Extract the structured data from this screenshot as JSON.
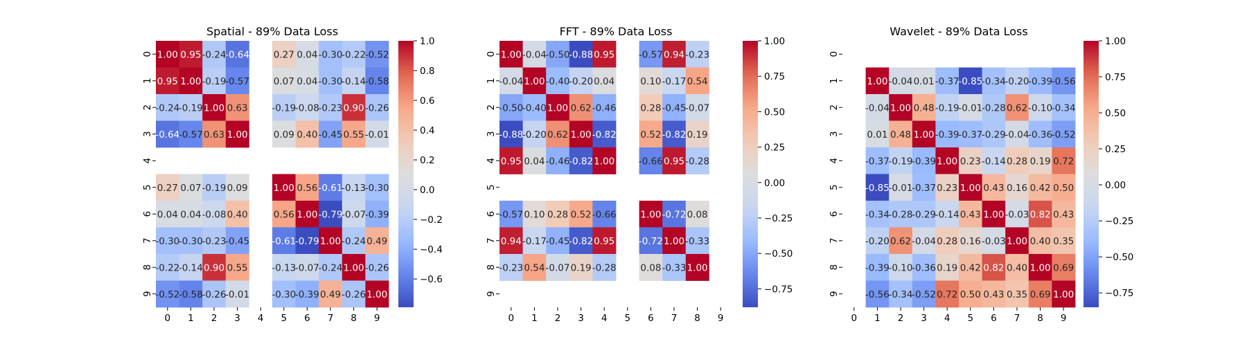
{
  "colormap": {
    "name": "coolwarm",
    "stops": [
      "#3b4cc0",
      "#6788ee",
      "#9abbff",
      "#c9d7f0",
      "#dddddd",
      "#f2cbb7",
      "#f7a889",
      "#e26952",
      "#b40426"
    ]
  },
  "chart_data": [
    {
      "type": "heatmap",
      "title": "Spatial - 89% Data Loss",
      "xlabel": "",
      "ylabel": "",
      "x_ticks": [
        "0",
        "1",
        "2",
        "3",
        "4",
        "5",
        "6",
        "7",
        "8",
        "9"
      ],
      "y_ticks": [
        "0",
        "1",
        "2",
        "3",
        "4",
        "5",
        "6",
        "7",
        "8",
        "9"
      ],
      "vmin": -0.79,
      "vmax": 1.0,
      "colorbar_ticks": [
        -0.6,
        -0.4,
        -0.2,
        0.0,
        0.2,
        0.4,
        0.6,
        0.8,
        1.0
      ],
      "colorbar_labels": [
        "−0.6",
        "−0.4",
        "−0.2",
        "0.0",
        "0.2",
        "0.4",
        "0.6",
        "0.8",
        "1.0"
      ],
      "matrix": [
        [
          1.0,
          0.95,
          -0.24,
          -0.64,
          null,
          0.27,
          0.04,
          -0.3,
          -0.22,
          -0.52
        ],
        [
          0.95,
          1.0,
          -0.19,
          -0.57,
          null,
          0.07,
          0.04,
          -0.3,
          -0.14,
          -0.58
        ],
        [
          -0.24,
          -0.19,
          1.0,
          0.63,
          null,
          -0.19,
          -0.08,
          -0.23,
          0.9,
          -0.26
        ],
        [
          -0.64,
          -0.57,
          0.63,
          1.0,
          null,
          0.09,
          0.4,
          -0.45,
          0.55,
          -0.01
        ],
        [
          null,
          null,
          null,
          null,
          null,
          null,
          null,
          null,
          null,
          null
        ],
        [
          0.27,
          0.07,
          -0.19,
          0.09,
          null,
          1.0,
          0.56,
          -0.61,
          -0.13,
          -0.3
        ],
        [
          0.04,
          0.04,
          -0.08,
          0.4,
          null,
          0.56,
          1.0,
          -0.79,
          -0.07,
          -0.39
        ],
        [
          -0.3,
          -0.3,
          -0.23,
          -0.45,
          null,
          -0.61,
          -0.79,
          1.0,
          -0.24,
          0.49
        ],
        [
          -0.22,
          -0.14,
          0.9,
          0.55,
          null,
          -0.13,
          -0.07,
          -0.24,
          1.0,
          -0.26
        ],
        [
          -0.52,
          -0.58,
          -0.26,
          -0.01,
          null,
          -0.3,
          -0.39,
          0.49,
          -0.26,
          1.0
        ]
      ]
    },
    {
      "type": "heatmap",
      "title": "FFT - 89% Data Loss",
      "xlabel": "",
      "ylabel": "",
      "x_ticks": [
        "0",
        "1",
        "2",
        "3",
        "4",
        "5",
        "6",
        "7",
        "8",
        "9"
      ],
      "y_ticks": [
        "0",
        "1",
        "2",
        "3",
        "4",
        "5",
        "6",
        "7",
        "8",
        "9"
      ],
      "vmin": -0.88,
      "vmax": 1.0,
      "colorbar_ticks": [
        -0.75,
        -0.5,
        -0.25,
        0.0,
        0.25,
        0.5,
        0.75,
        1.0
      ],
      "colorbar_labels": [
        "−0.75",
        "−0.50",
        "−0.25",
        "0.00",
        "0.25",
        "0.50",
        "0.75",
        "1.00"
      ],
      "matrix": [
        [
          1.0,
          -0.04,
          -0.5,
          -0.88,
          0.95,
          null,
          -0.57,
          0.94,
          -0.23,
          null
        ],
        [
          -0.04,
          1.0,
          -0.4,
          -0.2,
          0.04,
          null,
          0.1,
          -0.17,
          0.54,
          null
        ],
        [
          -0.5,
          -0.4,
          1.0,
          0.62,
          -0.46,
          null,
          0.28,
          -0.45,
          -0.07,
          null
        ],
        [
          -0.88,
          -0.2,
          0.62,
          1.0,
          -0.82,
          null,
          0.52,
          -0.82,
          0.19,
          null
        ],
        [
          0.95,
          0.04,
          -0.46,
          -0.82,
          1.0,
          null,
          -0.66,
          0.95,
          -0.28,
          null
        ],
        [
          null,
          null,
          null,
          null,
          null,
          null,
          null,
          null,
          null,
          null
        ],
        [
          -0.57,
          0.1,
          0.28,
          0.52,
          -0.66,
          null,
          1.0,
          -0.72,
          0.08,
          null
        ],
        [
          0.94,
          -0.17,
          -0.45,
          -0.82,
          0.95,
          null,
          -0.72,
          1.0,
          -0.33,
          null
        ],
        [
          -0.23,
          0.54,
          -0.07,
          0.19,
          -0.28,
          null,
          0.08,
          -0.33,
          1.0,
          null
        ],
        [
          null,
          null,
          null,
          null,
          null,
          null,
          null,
          null,
          null,
          null
        ]
      ]
    },
    {
      "type": "heatmap",
      "title": "Wavelet - 89% Data Loss",
      "xlabel": "",
      "ylabel": "",
      "x_ticks": [
        "0",
        "1",
        "2",
        "3",
        "4",
        "5",
        "6",
        "7",
        "8",
        "9"
      ],
      "y_ticks": [
        "0",
        "1",
        "2",
        "3",
        "4",
        "5",
        "6",
        "7",
        "8",
        "9"
      ],
      "vmin": -0.85,
      "vmax": 1.0,
      "colorbar_ticks": [
        -0.75,
        -0.5,
        -0.25,
        0.0,
        0.25,
        0.5,
        0.75,
        1.0
      ],
      "colorbar_labels": [
        "−0.75",
        "−0.50",
        "−0.25",
        "0.00",
        "0.25",
        "0.50",
        "0.75",
        "1.00"
      ],
      "matrix": [
        [
          null,
          null,
          null,
          null,
          null,
          null,
          null,
          null,
          null,
          null
        ],
        [
          null,
          1.0,
          -0.04,
          0.01,
          -0.37,
          -0.85,
          -0.34,
          -0.2,
          -0.39,
          -0.56
        ],
        [
          null,
          -0.04,
          1.0,
          0.48,
          -0.19,
          -0.01,
          -0.28,
          0.62,
          -0.1,
          -0.34
        ],
        [
          null,
          0.01,
          0.48,
          1.0,
          -0.39,
          -0.37,
          -0.29,
          -0.04,
          -0.36,
          -0.52
        ],
        [
          null,
          -0.37,
          -0.19,
          -0.39,
          1.0,
          0.23,
          -0.14,
          0.28,
          0.19,
          0.72
        ],
        [
          null,
          -0.85,
          -0.01,
          -0.37,
          0.23,
          1.0,
          0.43,
          0.16,
          0.42,
          0.5
        ],
        [
          null,
          -0.34,
          -0.28,
          -0.29,
          -0.14,
          0.43,
          1.0,
          -0.03,
          0.82,
          0.43
        ],
        [
          null,
          -0.2,
          0.62,
          -0.04,
          0.28,
          0.16,
          -0.03,
          1.0,
          0.4,
          0.35
        ],
        [
          null,
          -0.39,
          -0.1,
          -0.36,
          0.19,
          0.42,
          0.82,
          0.4,
          1.0,
          0.69
        ],
        [
          null,
          -0.56,
          -0.34,
          -0.52,
          0.72,
          0.5,
          0.43,
          0.35,
          0.69,
          1.0
        ]
      ]
    }
  ]
}
